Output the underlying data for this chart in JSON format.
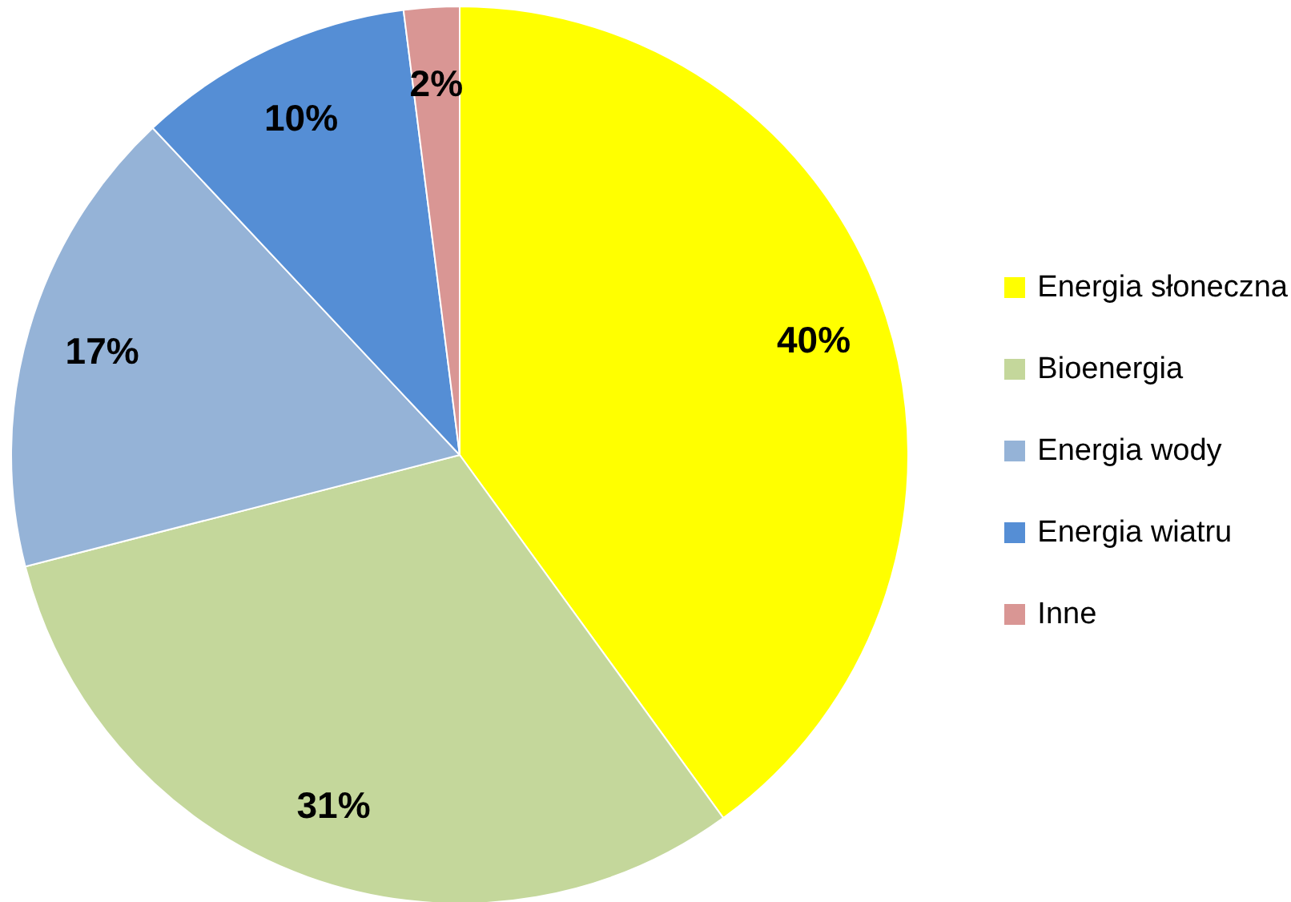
{
  "chart_data": {
    "type": "pie",
    "categories": [
      "Energia słoneczna",
      "Bioenergia",
      "Energia wody",
      "Energia wiatru",
      "Inne"
    ],
    "values": [
      40,
      31,
      17,
      10,
      2
    ],
    "colors": [
      "#ffff00",
      "#c4d79b",
      "#95b3d7",
      "#558ed5",
      "#d99694"
    ],
    "value_labels": [
      "40%",
      "31%",
      "17%",
      "10%",
      "2%"
    ],
    "legend": "right"
  }
}
